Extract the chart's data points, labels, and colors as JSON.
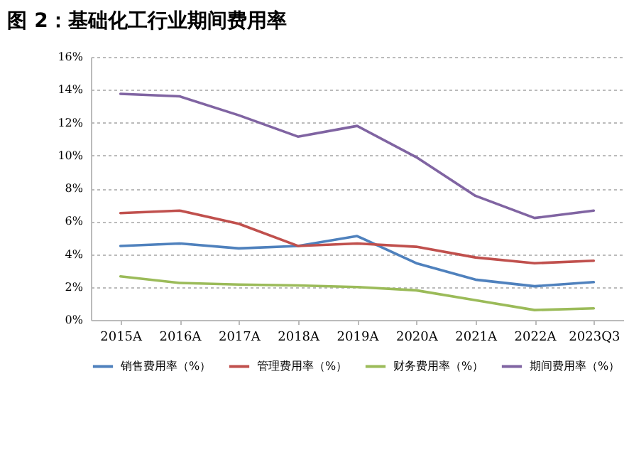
{
  "chart_data": {
    "type": "line",
    "title": "图 2：基础化工行业期间费用率",
    "categories": [
      "2015A",
      "2016A",
      "2017A",
      "2018A",
      "2019A",
      "2020A",
      "2021A",
      "2022A",
      "2023Q3"
    ],
    "series": [
      {
        "name": "销售费用率（%）",
        "color": "#4f81bd",
        "values": [
          4.5,
          4.65,
          4.35,
          4.5,
          5.1,
          3.45,
          2.45,
          2.05,
          2.3
        ]
      },
      {
        "name": "管理费用率（%）",
        "color": "#c0504d",
        "values": [
          6.5,
          6.65,
          5.85,
          4.5,
          4.65,
          4.45,
          3.8,
          3.45,
          3.6
        ]
      },
      {
        "name": "财务费用率（%）",
        "color": "#9bbb59",
        "values": [
          2.65,
          2.25,
          2.15,
          2.1,
          2.0,
          1.8,
          1.2,
          0.6,
          0.7
        ]
      },
      {
        "name": "期间费用率（%）",
        "color": "#8064a2",
        "values": [
          13.75,
          13.6,
          12.45,
          11.15,
          11.8,
          9.9,
          7.55,
          6.2,
          6.65
        ]
      }
    ],
    "ylim": [
      0,
      16
    ],
    "yticks": [
      {
        "value": 0,
        "label": "0%"
      },
      {
        "value": 2,
        "label": "2%"
      },
      {
        "value": 4,
        "label": "4%"
      },
      {
        "value": 6,
        "label": "6%"
      },
      {
        "value": 8,
        "label": "8%"
      },
      {
        "value": 10,
        "label": "10%"
      },
      {
        "value": 12,
        "label": "12%"
      },
      {
        "value": 14,
        "label": "14%"
      },
      {
        "value": 16,
        "label": "16%"
      }
    ],
    "grid": "y",
    "legend": "bottom",
    "marker": "none",
    "line_style": "solid"
  }
}
